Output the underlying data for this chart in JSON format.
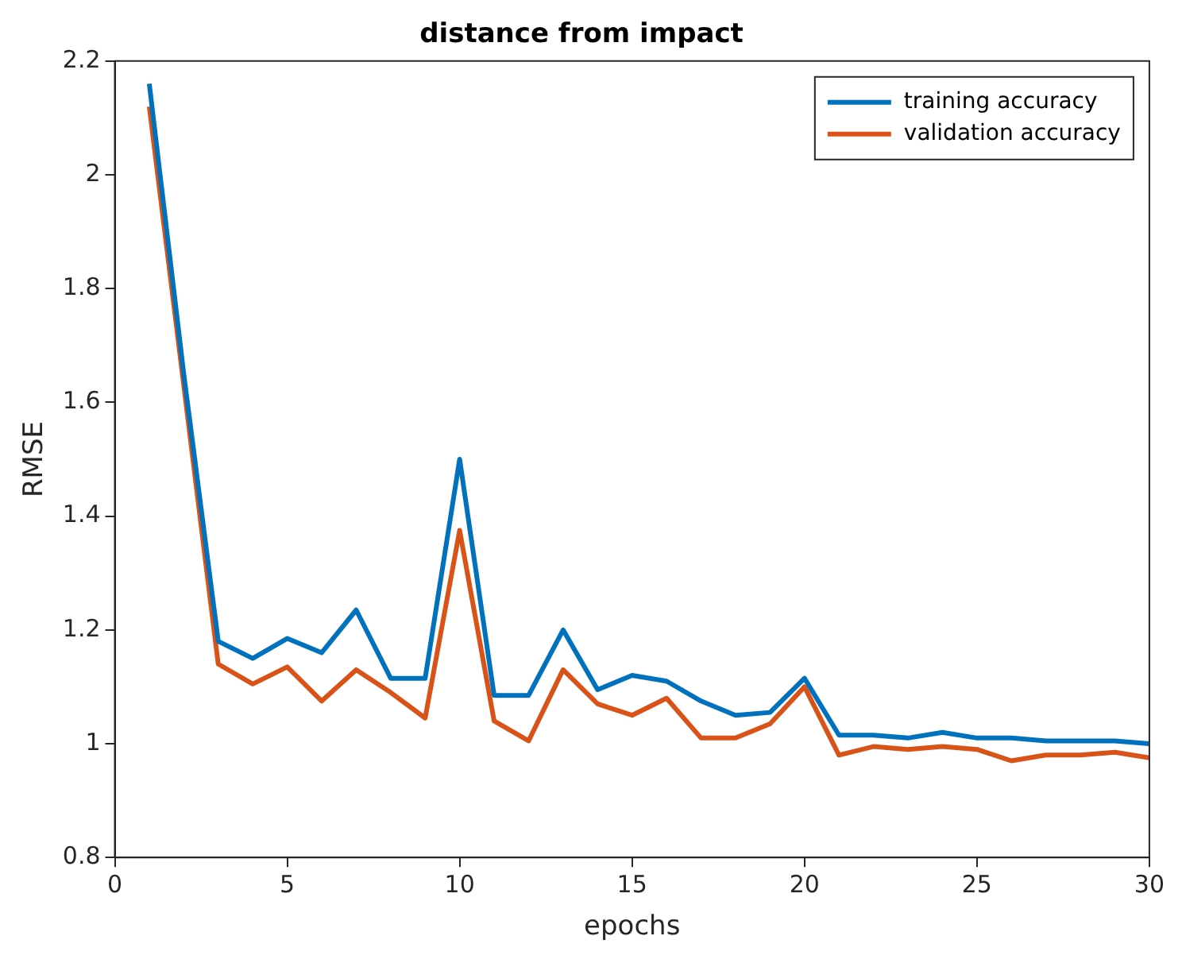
{
  "chart_data": {
    "type": "line",
    "title": "distance from impact",
    "xlabel": "epochs",
    "ylabel": "RMSE",
    "x": [
      1,
      2,
      3,
      4,
      5,
      6,
      7,
      8,
      9,
      10,
      11,
      12,
      13,
      14,
      15,
      16,
      17,
      18,
      19,
      20,
      21,
      22,
      23,
      24,
      25,
      26,
      27,
      28,
      29,
      30
    ],
    "series": [
      {
        "name": "training accuracy",
        "color": "#0072bd",
        "values": [
          2.16,
          1.65,
          1.18,
          1.15,
          1.185,
          1.16,
          1.235,
          1.115,
          1.115,
          1.5,
          1.085,
          1.085,
          1.2,
          1.095,
          1.12,
          1.11,
          1.075,
          1.05,
          1.055,
          1.115,
          1.015,
          1.015,
          1.01,
          1.02,
          1.01,
          1.01,
          1.005,
          1.005,
          1.005,
          1.0
        ]
      },
      {
        "name": "validation accuracy",
        "color": "#d95319",
        "values": [
          2.12,
          1.63,
          1.14,
          1.105,
          1.135,
          1.075,
          1.13,
          1.09,
          1.045,
          1.375,
          1.04,
          1.005,
          1.13,
          1.07,
          1.05,
          1.08,
          1.01,
          1.01,
          1.035,
          1.1,
          0.98,
          0.995,
          0.99,
          0.995,
          0.99,
          0.97,
          0.98,
          0.98,
          0.985,
          0.975
        ]
      }
    ],
    "xlim": [
      0,
      30
    ],
    "xticks": [
      0,
      5,
      10,
      15,
      20,
      25,
      30
    ],
    "ylim": [
      0.8,
      2.2
    ],
    "yticks": [
      0.8,
      1,
      1.2,
      1.4,
      1.6,
      1.8,
      2,
      2.2
    ],
    "grid": false,
    "legend": "top right",
    "marker": "none",
    "line_style": "solid"
  }
}
